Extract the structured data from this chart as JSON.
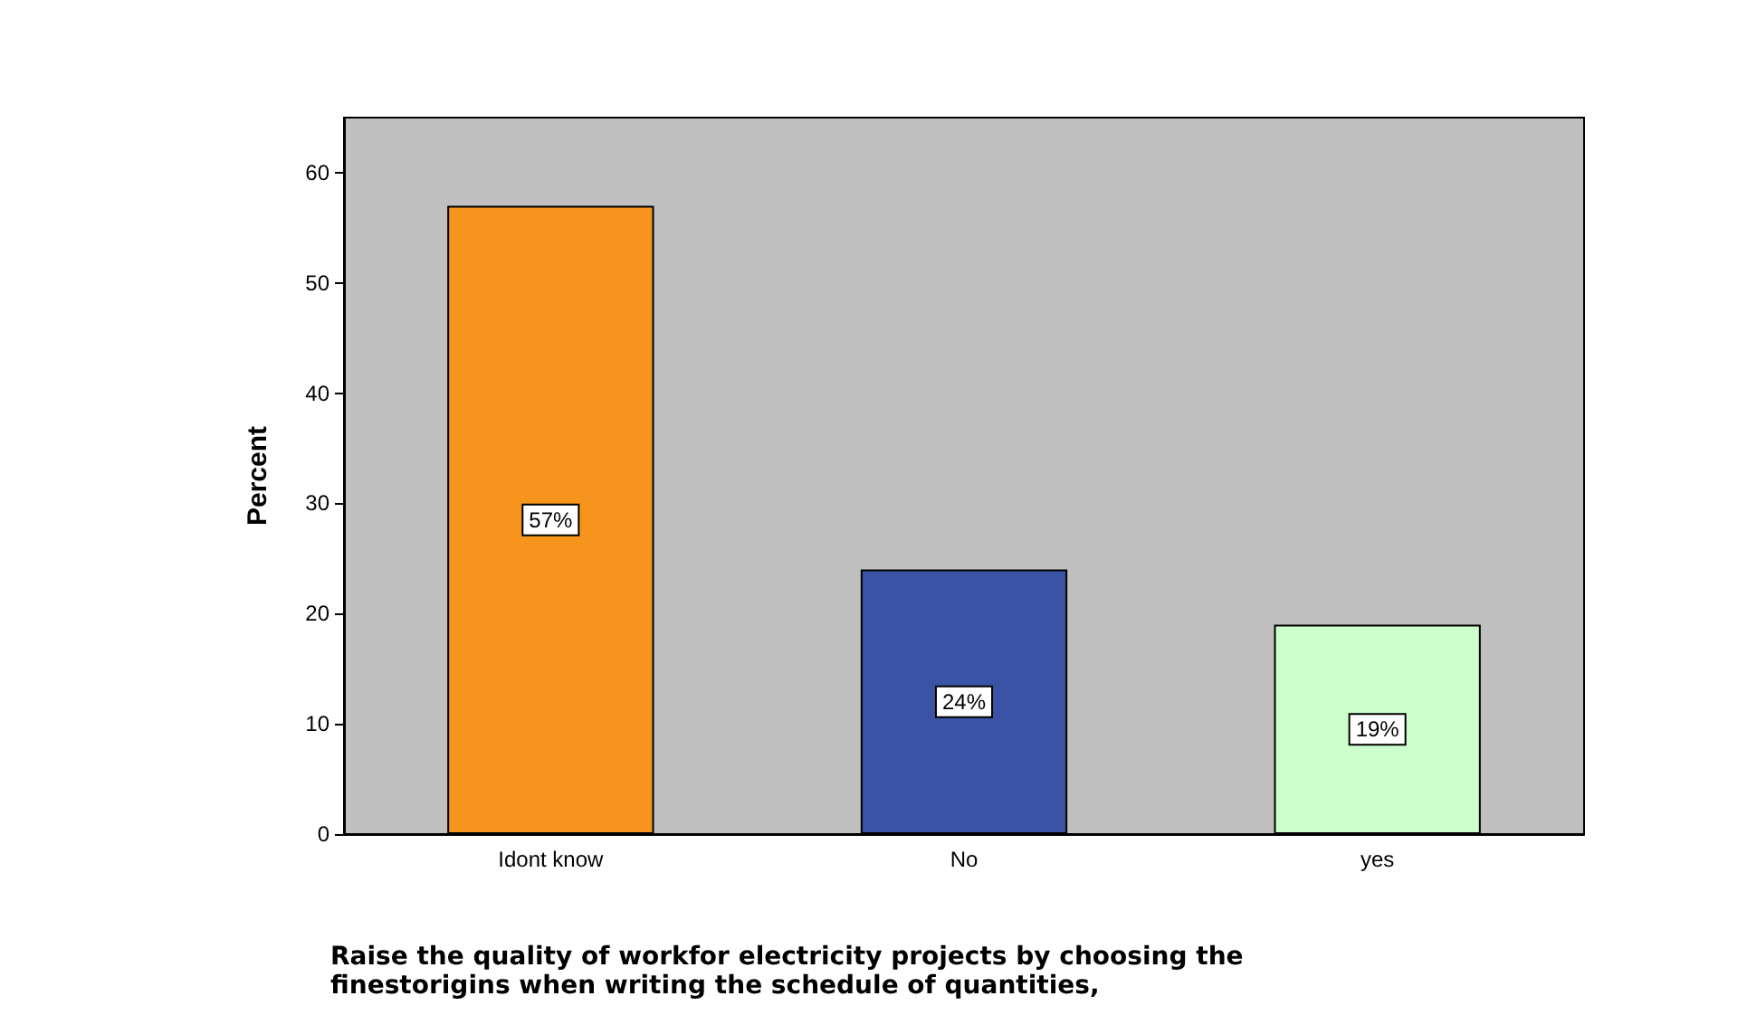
{
  "chart_data": {
    "type": "bar",
    "xlabel": "Raise the quality of workfor electricity projects by choosing the finestorigins when writing the schedule of quantities,",
    "ylabel": "Percent",
    "categories": [
      "Idont know",
      "No",
      "yes"
    ],
    "values": [
      57,
      24,
      19
    ],
    "colors": [
      "#f7941d",
      "#3a53a4",
      "#ccffcc"
    ],
    "value_labels": [
      "57%",
      "24%",
      "19%"
    ],
    "ylim": [
      0,
      65
    ],
    "yticks": [
      0,
      10,
      20,
      30,
      40,
      50,
      60
    ],
    "grid": false
  }
}
